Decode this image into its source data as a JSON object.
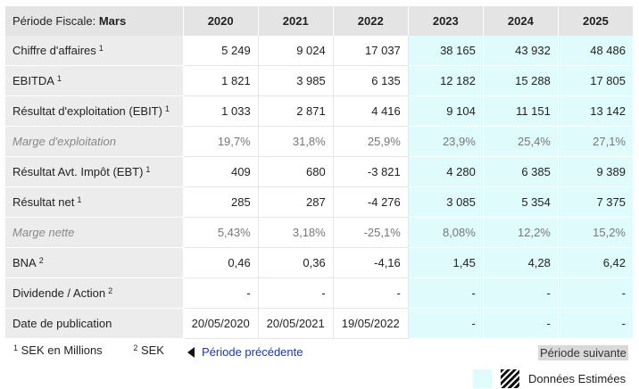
{
  "header": {
    "label": "Période Fiscale:",
    "label_value": "Mars",
    "years": [
      "2020",
      "2021",
      "2022",
      "2023",
      "2024",
      "2025"
    ]
  },
  "rows": [
    {
      "label": "Chiffre d'affaires",
      "sup": "1",
      "italic": false,
      "values": [
        "5 249",
        "9 024",
        "17 037",
        "38 165",
        "43 932",
        "48 486"
      ]
    },
    {
      "label": "EBITDA",
      "sup": "1",
      "italic": false,
      "values": [
        "1 821",
        "3 985",
        "6 135",
        "12 182",
        "15 288",
        "17 805"
      ]
    },
    {
      "label": "Résultat d'exploitation (EBIT)",
      "sup": "1",
      "italic": false,
      "values": [
        "1 033",
        "2 871",
        "4 416",
        "9 104",
        "11 151",
        "13 142"
      ]
    },
    {
      "label": "Marge d'exploitation",
      "sup": "",
      "italic": true,
      "values": [
        "19,7%",
        "31,8%",
        "25,9%",
        "23,9%",
        "25,4%",
        "27,1%"
      ]
    },
    {
      "label": "Résultat Avt. Impôt (EBT)",
      "sup": "1",
      "italic": false,
      "values": [
        "409",
        "680",
        "-3 821",
        "4 280",
        "6 385",
        "9 389"
      ]
    },
    {
      "label": "Résultat net",
      "sup": "1",
      "italic": false,
      "values": [
        "285",
        "287",
        "-4 276",
        "3 085",
        "5 354",
        "7 375"
      ]
    },
    {
      "label": "Marge nette",
      "sup": "",
      "italic": true,
      "values": [
        "5,43%",
        "3,18%",
        "-25,1%",
        "8,08%",
        "12,2%",
        "15,2%"
      ]
    },
    {
      "label": "BNA",
      "sup": "2",
      "italic": false,
      "values": [
        "0,46",
        "0,36",
        "-4,16",
        "1,45",
        "4,28",
        "6,42"
      ]
    },
    {
      "label": "Dividende / Action",
      "sup": "2",
      "italic": false,
      "values": [
        "-",
        "-",
        "-",
        "-",
        "-",
        "-"
      ]
    },
    {
      "label": "Date de publication",
      "sup": "",
      "italic": false,
      "date": true,
      "values": [
        "20/05/2020",
        "20/05/2021",
        "19/05/2022",
        "-",
        "-",
        "-"
      ]
    }
  ],
  "estimated_columns": [
    3,
    4,
    5
  ],
  "footer": {
    "note1_num": "1",
    "note1_text": "SEK en Millions",
    "note2_num": "2",
    "note2_text": "SEK",
    "prev_label": "Période précédente",
    "next_label": "Période suivante",
    "legend_label": "Données Estimées"
  },
  "colors": {
    "estimated_bg": "#e0fbfb",
    "header_bg": "#e4e4e4",
    "label_bg": "#ececec",
    "link": "#1c3a9c"
  },
  "icons": {
    "prev": "triangle-left-icon",
    "legend_estimated": "cyan-swatch",
    "legend_hatched": "hatched-swatch"
  }
}
